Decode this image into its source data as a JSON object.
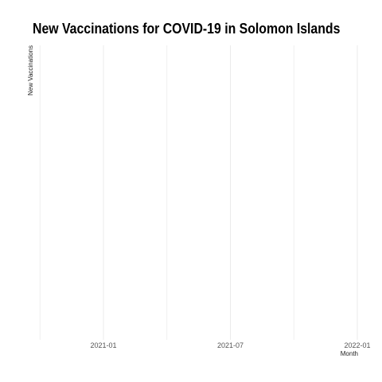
{
  "chart_data": {
    "type": "line",
    "title": "New Vaccinations for COVID-19 in Solomon Islands",
    "xlabel": "Month",
    "ylabel": "New Vaccinations",
    "x_ticks": [
      "2021-01",
      "2021-07",
      "2022-01"
    ],
    "series": [],
    "grid": true,
    "colors": {
      "grid": "#ebebeb",
      "text": "#000000",
      "tick_text": "#555555"
    }
  }
}
